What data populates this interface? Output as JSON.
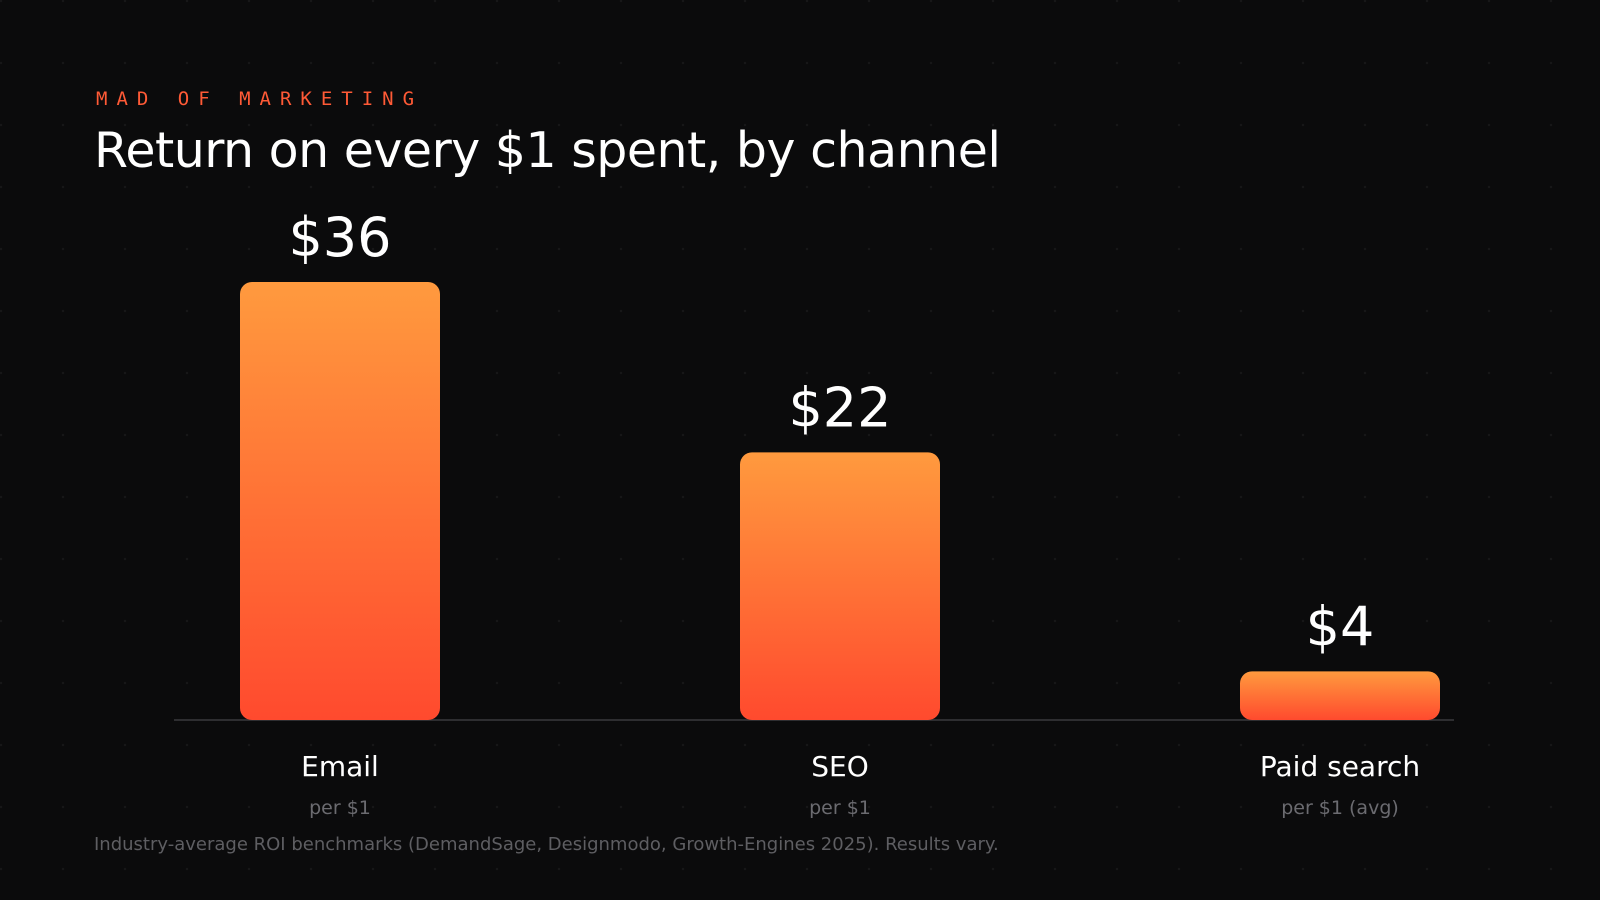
{
  "kicker": "MAD OF MARKETING",
  "footnote": "Industry-average ROI benchmarks (DemandSage, Designmodo, Growth-Engines 2025). Results vary.",
  "colors": {
    "background": "#0b0b0c",
    "bar_top": "#ff9a3e",
    "bar_bottom": "#ff4a2e",
    "kicker": "#ff5a36",
    "label": "#ffffff",
    "sublabel": "#6b6b70",
    "baseline": "#2e2e31"
  },
  "chart_data": {
    "type": "bar",
    "title": "Return on every $1 spent, by channel",
    "categories": [
      "Email",
      "SEO",
      "Paid search"
    ],
    "values": [
      36,
      22,
      4
    ],
    "value_labels": [
      "$36",
      "$22",
      "$4"
    ],
    "sublabels": [
      "per $1",
      "per $1",
      "per $1 (avg)"
    ],
    "ylim": [
      0,
      36
    ],
    "grid": false,
    "legend": "none",
    "xlabel": "",
    "ylabel": ""
  }
}
